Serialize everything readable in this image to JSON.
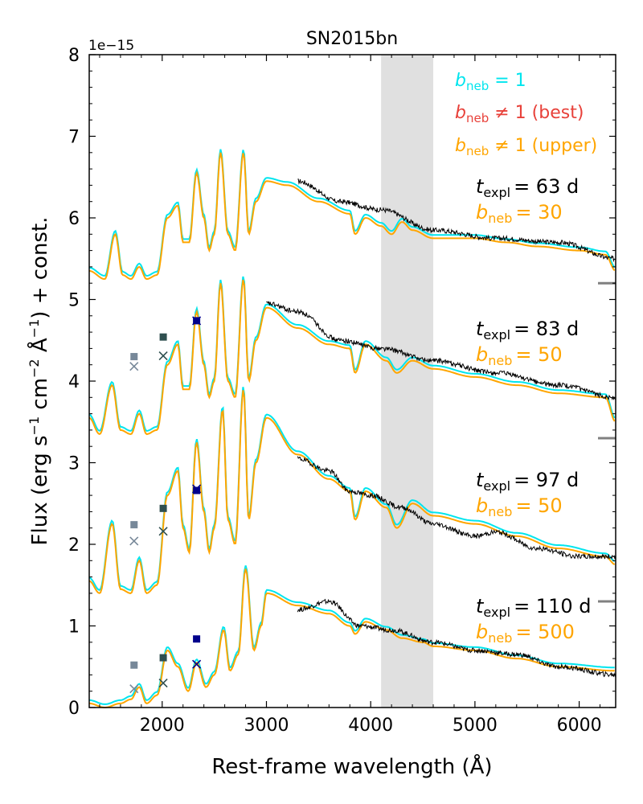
{
  "chart_data": {
    "type": "line",
    "title": "SN2015bn",
    "xlabel": "Rest-frame wavelength (Å)",
    "ylabel_parts": {
      "pre": "Flux (erg s",
      "s1": "−1",
      "mid1": " cm",
      "s2": "−2",
      "mid2": " Å",
      "s3": "−1",
      "post": ") + const."
    },
    "y_scale_label": "1e−15",
    "xlim": [
      1300,
      6350
    ],
    "ylim": [
      0,
      8
    ],
    "x_ticks": [
      2000,
      3000,
      4000,
      5000,
      6000
    ],
    "y_ticks": [
      0,
      1,
      2,
      3,
      4,
      5,
      6,
      7,
      8
    ],
    "x_tick_labels": [
      "2000",
      "3000",
      "4000",
      "5000",
      "6000"
    ],
    "y_tick_labels": [
      "0",
      "1",
      "2",
      "3",
      "4",
      "5",
      "6",
      "7",
      "8"
    ],
    "shaded_band": {
      "x": [
        4100,
        4600
      ],
      "color": "#e0e0e0"
    },
    "colors": {
      "bneq1": "#00e5ee",
      "best": "#e8413a",
      "upper": "#ffa500",
      "observed": "#000000",
      "offset_marker": "#808080"
    },
    "legend": [
      {
        "symbol": "b",
        "sub": "neb",
        "rest": " = 1",
        "color": "#00e5ee"
      },
      {
        "symbol": "b",
        "sub": "neb",
        "rest": " ≠ 1 (best)",
        "color": "#e8413a"
      },
      {
        "symbol": "b",
        "sub": "neb",
        "rest": " ≠ 1 (upper)",
        "color": "#ffa500"
      }
    ],
    "epochs": [
      {
        "t_label": "= 63 d",
        "b_label": "= 30",
        "offset": 5.2,
        "label_y": 6.4,
        "model_shape": [
          [
            1300,
            0.15
          ],
          [
            1450,
            0.05
          ],
          [
            1550,
            0.6
          ],
          [
            1620,
            0.1
          ],
          [
            1700,
            0.05
          ],
          [
            1780,
            0.2
          ],
          [
            1850,
            0.05
          ],
          [
            1950,
            0.1
          ],
          [
            2050,
            0.8
          ],
          [
            2150,
            0.95
          ],
          [
            2200,
            0.5
          ],
          [
            2260,
            0.5
          ],
          [
            2330,
            1.35
          ],
          [
            2400,
            0.8
          ],
          [
            2450,
            0.4
          ],
          [
            2500,
            0.6
          ],
          [
            2560,
            1.6
          ],
          [
            2630,
            0.6
          ],
          [
            2700,
            0.4
          ],
          [
            2780,
            1.6
          ],
          [
            2830,
            0.6
          ],
          [
            2900,
            1.0
          ],
          [
            3000,
            1.25
          ],
          [
            3200,
            1.2
          ],
          [
            3500,
            1.0
          ],
          [
            3800,
            0.85
          ],
          [
            3850,
            0.6
          ],
          [
            3950,
            0.8
          ],
          [
            4100,
            0.7
          ],
          [
            4200,
            0.6
          ],
          [
            4300,
            0.75
          ],
          [
            4400,
            0.65
          ],
          [
            4600,
            0.55
          ],
          [
            5000,
            0.55
          ],
          [
            5300,
            0.5
          ],
          [
            5600,
            0.45
          ],
          [
            6000,
            0.4
          ],
          [
            6250,
            0.35
          ],
          [
            6350,
            0.15
          ]
        ],
        "obs_shape": [
          [
            3300,
            1.25
          ],
          [
            3700,
            1.0
          ],
          [
            4100,
            0.9
          ],
          [
            4600,
            0.65
          ],
          [
            5200,
            0.55
          ],
          [
            5800,
            0.5
          ],
          [
            6350,
            0.3
          ]
        ],
        "markers": []
      },
      {
        "t_label": "= 83 d",
        "b_label": "= 50",
        "offset": 3.3,
        "label_y": 4.5,
        "model_shape": [
          [
            1300,
            0.25
          ],
          [
            1400,
            0.05
          ],
          [
            1520,
            0.65
          ],
          [
            1600,
            0.1
          ],
          [
            1700,
            0.05
          ],
          [
            1780,
            0.3
          ],
          [
            1850,
            0.05
          ],
          [
            1950,
            0.1
          ],
          [
            2050,
            0.9
          ],
          [
            2150,
            1.15
          ],
          [
            2200,
            0.6
          ],
          [
            2260,
            0.6
          ],
          [
            2330,
            1.55
          ],
          [
            2400,
            0.9
          ],
          [
            2450,
            0.5
          ],
          [
            2500,
            0.7
          ],
          [
            2560,
            1.9
          ],
          [
            2630,
            0.7
          ],
          [
            2700,
            0.5
          ],
          [
            2780,
            1.95
          ],
          [
            2830,
            0.7
          ],
          [
            2900,
            1.2
          ],
          [
            3000,
            1.6
          ],
          [
            3300,
            1.35
          ],
          [
            3600,
            1.15
          ],
          [
            3800,
            1.1
          ],
          [
            3850,
            0.8
          ],
          [
            3950,
            1.15
          ],
          [
            4150,
            0.95
          ],
          [
            4250,
            0.8
          ],
          [
            4400,
            0.95
          ],
          [
            4600,
            0.85
          ],
          [
            5000,
            0.75
          ],
          [
            5400,
            0.65
          ],
          [
            5800,
            0.55
          ],
          [
            6250,
            0.5
          ],
          [
            6350,
            0.2
          ]
        ],
        "obs_shape": [
          [
            3000,
            1.65
          ],
          [
            3300,
            1.55
          ],
          [
            3700,
            1.2
          ],
          [
            4100,
            1.1
          ],
          [
            4600,
            0.95
          ],
          [
            5200,
            0.8
          ],
          [
            5800,
            0.65
          ],
          [
            6350,
            0.5
          ]
        ],
        "markers": [
          {
            "x": 1730,
            "y": 4.3,
            "shape": "square",
            "color": "#778899"
          },
          {
            "x": 1730,
            "y": 4.18,
            "shape": "x",
            "color": "#778899"
          },
          {
            "x": 2010,
            "y": 4.54,
            "shape": "square",
            "color": "#2f4f4f"
          },
          {
            "x": 2010,
            "y": 4.31,
            "shape": "x",
            "color": "#2f4f4f"
          },
          {
            "x": 2330,
            "y": 4.74,
            "shape": "square",
            "color": "#00008b"
          },
          {
            "x": 2330,
            "y": 4.74,
            "shape": "x",
            "color": "#00008b"
          }
        ]
      },
      {
        "t_label": "= 97 d",
        "b_label": "= 50",
        "offset": 1.3,
        "label_y": 2.65,
        "model_shape": [
          [
            1300,
            0.25
          ],
          [
            1400,
            0.1
          ],
          [
            1520,
            0.95
          ],
          [
            1600,
            0.15
          ],
          [
            1700,
            0.1
          ],
          [
            1780,
            0.5
          ],
          [
            1850,
            0.1
          ],
          [
            1950,
            0.2
          ],
          [
            2050,
            1.3
          ],
          [
            2150,
            1.6
          ],
          [
            2200,
            0.9
          ],
          [
            2260,
            0.6
          ],
          [
            2330,
            1.95
          ],
          [
            2400,
            1.1
          ],
          [
            2450,
            0.6
          ],
          [
            2500,
            0.9
          ],
          [
            2580,
            2.35
          ],
          [
            2630,
            1.0
          ],
          [
            2700,
            0.7
          ],
          [
            2780,
            2.6
          ],
          [
            2830,
            1.0
          ],
          [
            2900,
            1.7
          ],
          [
            3000,
            2.25
          ],
          [
            3300,
            1.8
          ],
          [
            3600,
            1.5
          ],
          [
            3800,
            1.35
          ],
          [
            3850,
            1.0
          ],
          [
            3950,
            1.35
          ],
          [
            4150,
            1.15
          ],
          [
            4250,
            0.9
          ],
          [
            4400,
            1.2
          ],
          [
            4600,
            1.05
          ],
          [
            5000,
            0.95
          ],
          [
            5400,
            0.8
          ],
          [
            5800,
            0.65
          ],
          [
            6250,
            0.55
          ],
          [
            6350,
            0.45
          ]
        ],
        "obs_shape": [
          [
            3300,
            1.75
          ],
          [
            3600,
            1.6
          ],
          [
            3800,
            1.35
          ],
          [
            4000,
            1.3
          ],
          [
            4300,
            1.15
          ],
          [
            4600,
            0.95
          ],
          [
            5000,
            0.8
          ],
          [
            5200,
            0.85
          ],
          [
            5600,
            0.65
          ],
          [
            6000,
            0.55
          ],
          [
            6350,
            0.55
          ]
        ],
        "markers": [
          {
            "x": 1730,
            "y": 2.24,
            "shape": "square",
            "color": "#778899"
          },
          {
            "x": 1730,
            "y": 2.04,
            "shape": "x",
            "color": "#778899"
          },
          {
            "x": 2010,
            "y": 2.44,
            "shape": "square",
            "color": "#2f4f4f"
          },
          {
            "x": 2010,
            "y": 2.16,
            "shape": "x",
            "color": "#2f4f4f"
          },
          {
            "x": 2330,
            "y": 2.66,
            "shape": "square",
            "color": "#00008b"
          },
          {
            "x": 2330,
            "y": 2.68,
            "shape": "x",
            "color": "#00008b"
          }
        ]
      },
      {
        "t_label": "= 110 d",
        "b_label": "= 500",
        "offset": 0.0,
        "label_y": 1.1,
        "model_shape": [
          [
            1300,
            0.05
          ],
          [
            1450,
            0.0
          ],
          [
            1600,
            0.05
          ],
          [
            1700,
            0.1
          ],
          [
            1780,
            0.25
          ],
          [
            1850,
            0.05
          ],
          [
            1950,
            0.15
          ],
          [
            2050,
            0.7
          ],
          [
            2150,
            0.5
          ],
          [
            2250,
            0.2
          ],
          [
            2330,
            0.55
          ],
          [
            2420,
            0.25
          ],
          [
            2500,
            0.4
          ],
          [
            2590,
            0.95
          ],
          [
            2650,
            0.45
          ],
          [
            2730,
            0.65
          ],
          [
            2800,
            1.7
          ],
          [
            2880,
            0.7
          ],
          [
            2950,
            1.0
          ],
          [
            3000,
            1.4
          ],
          [
            3300,
            1.25
          ],
          [
            3600,
            1.15
          ],
          [
            3800,
            1.0
          ],
          [
            3850,
            0.9
          ],
          [
            3950,
            1.05
          ],
          [
            4150,
            0.95
          ],
          [
            4300,
            0.85
          ],
          [
            4500,
            0.8
          ],
          [
            4600,
            0.75
          ],
          [
            5000,
            0.7
          ],
          [
            5400,
            0.6
          ],
          [
            5800,
            0.5
          ],
          [
            6350,
            0.45
          ]
        ],
        "obs_shape": [
          [
            3300,
            1.2
          ],
          [
            3600,
            1.3
          ],
          [
            3900,
            1.0
          ],
          [
            4200,
            0.95
          ],
          [
            4600,
            0.8
          ],
          [
            5000,
            0.7
          ],
          [
            5400,
            0.65
          ],
          [
            5800,
            0.5
          ],
          [
            6350,
            0.4
          ]
        ],
        "markers": [
          {
            "x": 1730,
            "y": 0.52,
            "shape": "square",
            "color": "#778899"
          },
          {
            "x": 1730,
            "y": 0.23,
            "shape": "x",
            "color": "#778899"
          },
          {
            "x": 2010,
            "y": 0.61,
            "shape": "square",
            "color": "#2f4f4f"
          },
          {
            "x": 2010,
            "y": 0.3,
            "shape": "x",
            "color": "#2f4f4f"
          },
          {
            "x": 2330,
            "y": 0.84,
            "shape": "square",
            "color": "#00008b"
          },
          {
            "x": 2330,
            "y": 0.53,
            "shape": "x",
            "color": "#00008b"
          }
        ]
      }
    ],
    "offset_markers_y": [
      5.2,
      3.3,
      1.3
    ]
  }
}
